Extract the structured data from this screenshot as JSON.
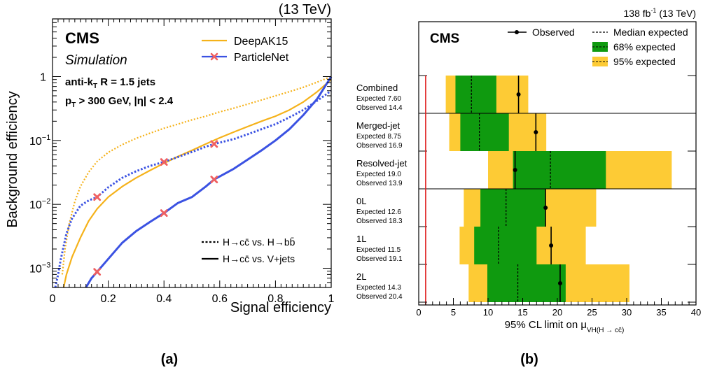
{
  "figure": {
    "caption_a": "(a)",
    "caption_b": "(b)"
  },
  "chart_data": [
    {
      "type": "line",
      "energy_label": "(13 TeV)",
      "experiment": "CMS",
      "sublabel": "Simulation",
      "jet_label_main": "anti-k",
      "jet_label_sub": "T",
      "jet_label_rest": " R = 1.5 jets",
      "cut_label_p": "p",
      "cut_label_sub": "T",
      "cut_label_rest": " > 300 GeV, |η| < 2.4",
      "xlabel": "Signal efficiency",
      "ylabel": "Background efficiency",
      "x_scale": "linear",
      "y_scale": "log",
      "xlim": [
        0,
        1
      ],
      "ylim": [
        0.0005,
        8
      ],
      "x_ticks": [
        "0",
        "0.2",
        "0.4",
        "0.6",
        "0.8",
        "1"
      ],
      "y_tick_labels": {
        "base": "10",
        "exp_m3": "−3",
        "exp_m2": "−2",
        "exp_m1": "−1",
        "one": "1"
      },
      "legend_models": [
        {
          "name": "DeepAK15",
          "color": "#f5b21a",
          "marker": "none"
        },
        {
          "name": "ParticleNet",
          "color": "#3b52e2",
          "marker": "cross",
          "marker_color": "#f06060"
        }
      ],
      "legend_styles": [
        {
          "label": "H→cc̄ vs. H→bb̄",
          "style": "dotted"
        },
        {
          "label": "H→cc̄ vs. V+jets",
          "style": "solid"
        }
      ],
      "series": [
        {
          "name": "DeepAK15",
          "style": "dotted",
          "color": "#f5b21a",
          "x": [
            0.035,
            0.045,
            0.06,
            0.08,
            0.1,
            0.13,
            0.16,
            0.2,
            0.25,
            0.3,
            0.35,
            0.4,
            0.45,
            0.5,
            0.55,
            0.6,
            0.65,
            0.7,
            0.75,
            0.8,
            0.85,
            0.9,
            0.95,
            1.0
          ],
          "y": [
            0.0008,
            0.002,
            0.005,
            0.011,
            0.019,
            0.032,
            0.047,
            0.065,
            0.086,
            0.108,
            0.13,
            0.155,
            0.18,
            0.21,
            0.24,
            0.28,
            0.32,
            0.37,
            0.43,
            0.5,
            0.58,
            0.68,
            0.82,
            1.0
          ]
        },
        {
          "name": "DeepAK15",
          "style": "solid",
          "color": "#f5b21a",
          "x": [
            0.04,
            0.05,
            0.07,
            0.1,
            0.13,
            0.16,
            0.2,
            0.25,
            0.3,
            0.35,
            0.4,
            0.45,
            0.5,
            0.55,
            0.6,
            0.65,
            0.7,
            0.75,
            0.8,
            0.85,
            0.9,
            0.95,
            1.0
          ],
          "y": [
            0.0005,
            0.0008,
            0.0015,
            0.003,
            0.0055,
            0.0085,
            0.013,
            0.019,
            0.026,
            0.034,
            0.044,
            0.056,
            0.07,
            0.088,
            0.11,
            0.135,
            0.165,
            0.2,
            0.24,
            0.3,
            0.4,
            0.58,
            0.9
          ]
        },
        {
          "name": "ParticleNet",
          "style": "dotted",
          "color": "#3b52e2",
          "x": [
            0.01,
            0.02,
            0.03,
            0.05,
            0.07,
            0.1,
            0.13,
            0.16,
            0.2,
            0.25,
            0.3,
            0.35,
            0.4,
            0.45,
            0.5,
            0.55,
            0.58,
            0.65,
            0.7,
            0.75,
            0.8,
            0.85,
            0.9,
            0.95,
            1.0
          ],
          "y": [
            0.0005,
            0.0008,
            0.0014,
            0.0035,
            0.006,
            0.0095,
            0.0115,
            0.013,
            0.0185,
            0.026,
            0.033,
            0.04,
            0.046,
            0.055,
            0.066,
            0.08,
            0.088,
            0.105,
            0.125,
            0.15,
            0.18,
            0.23,
            0.3,
            0.42,
            0.6
          ]
        },
        {
          "name": "ParticleNet",
          "style": "solid",
          "color": "#3b52e2",
          "x": [
            0.12,
            0.14,
            0.16,
            0.2,
            0.25,
            0.3,
            0.35,
            0.4,
            0.45,
            0.5,
            0.55,
            0.58,
            0.65,
            0.7,
            0.75,
            0.8,
            0.85,
            0.9,
            0.95,
            1.0
          ],
          "y": [
            0.0005,
            0.0007,
            0.00088,
            0.0014,
            0.0025,
            0.0038,
            0.0053,
            0.0073,
            0.0105,
            0.013,
            0.019,
            0.0245,
            0.036,
            0.05,
            0.07,
            0.1,
            0.15,
            0.25,
            0.45,
            1.0
          ]
        }
      ],
      "markers": [
        {
          "x": 0.16,
          "y": 0.013
        },
        {
          "x": 0.4,
          "y": 0.046
        },
        {
          "x": 0.58,
          "y": 0.088
        },
        {
          "x": 0.16,
          "y": 0.00088
        },
        {
          "x": 0.4,
          "y": 0.0073
        },
        {
          "x": 0.58,
          "y": 0.0245
        }
      ]
    },
    {
      "type": "bar",
      "orientation": "horizontal",
      "lumi_label_a": "138 fb",
      "lumi_label_sup": "-1",
      "lumi_label_b": " (13 TeV)",
      "experiment": "CMS",
      "xlabel_main": "95% CL limit on μ",
      "xlabel_sub": "VH(H → cc̄)",
      "xlim": [
        0,
        40
      ],
      "x_ticks": [
        0,
        5,
        10,
        15,
        20,
        25,
        30,
        35,
        40
      ],
      "reference_line": 1,
      "reference_color": "#e02020",
      "colors": {
        "band68": "#0f9a0f",
        "band95": "#fdcb35",
        "observed": "#000000"
      },
      "legend": [
        {
          "label": "Observed",
          "kind": "marker"
        },
        {
          "label": "Median expected",
          "kind": "dashed"
        },
        {
          "label": "68% expected",
          "kind": "band68"
        },
        {
          "label": "95% expected",
          "kind": "band95"
        }
      ],
      "categories": [
        {
          "name": "Combined",
          "expected_text": "Expected 7.60",
          "observed_text": "Observed 14.4",
          "expected": 7.6,
          "observed": 14.4,
          "band68": [
            5.3,
            11.2
          ],
          "band95": [
            3.9,
            15.8
          ]
        },
        {
          "name": "Merged-jet",
          "expected_text": "Expected 8.75",
          "observed_text": "Observed 16.9",
          "expected": 8.75,
          "observed": 16.9,
          "band68": [
            6.0,
            13.0
          ],
          "band95": [
            4.4,
            18.4
          ]
        },
        {
          "name": "Resolved-jet",
          "expected_text": "Expected 19.0",
          "observed_text": "Observed 13.9",
          "expected": 19.0,
          "observed": 13.9,
          "band68": [
            13.6,
            27.0
          ],
          "band95": [
            10.0,
            36.5
          ]
        },
        {
          "name": "0L",
          "expected_text": "Expected 12.6",
          "observed_text": "Observed 18.3",
          "expected": 12.6,
          "observed": 18.3,
          "band68": [
            8.9,
            18.2
          ],
          "band95": [
            6.5,
            25.6
          ]
        },
        {
          "name": "1L",
          "expected_text": "Expected 11.5",
          "observed_text": "Observed 19.1",
          "expected": 11.5,
          "observed": 19.1,
          "band68": [
            8.0,
            17.0
          ],
          "band95": [
            5.9,
            24.1
          ]
        },
        {
          "name": "2L",
          "expected_text": "Expected 14.3",
          "observed_text": "Observed 20.4",
          "expected": 14.3,
          "observed": 20.4,
          "band68": [
            9.9,
            21.2
          ],
          "band95": [
            7.2,
            30.4
          ]
        }
      ],
      "separators_after": [
        0,
        2
      ]
    }
  ]
}
